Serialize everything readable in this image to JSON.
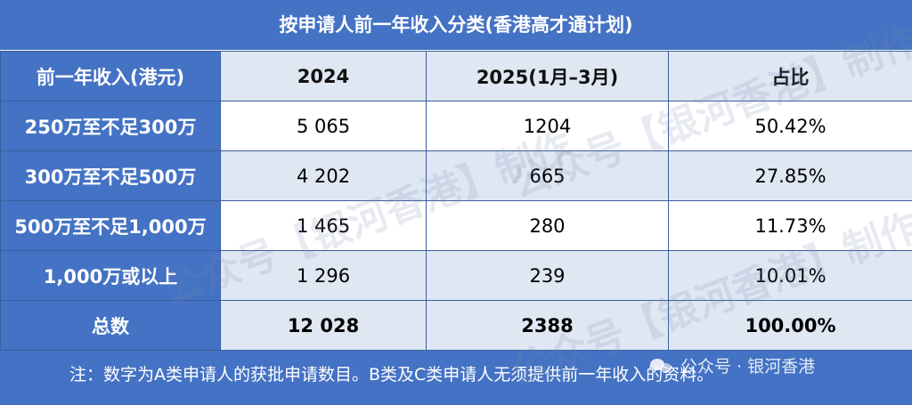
{
  "title": "按申请人前一年收入分类(香港高才通计划)",
  "table": {
    "headers": [
      "前一年收入(港元)",
      "2024",
      "2025(1月–3月)",
      "占比"
    ],
    "rows": [
      {
        "label": "250万至不足300万",
        "y2024": "5 065",
        "y2025": "1204",
        "share": "50.42%"
      },
      {
        "label": "300万至不足500万",
        "y2024": "4 202",
        "y2025": "665",
        "share": "27.85%"
      },
      {
        "label": "500万至不足1,000万",
        "y2024": "1 465",
        "y2025": "280",
        "share": "11.73%"
      },
      {
        "label": "1,000万或以上",
        "y2024": "1 296",
        "y2025": "239",
        "share": "10.01%"
      }
    ],
    "total": {
      "label": "总数",
      "y2024": "12 028",
      "y2025": "2388",
      "share": "100.00%"
    }
  },
  "note": "注：数字为A类申请人的获批申请数目。B类及C类申请人无须提供前一年收入的资料。",
  "watermark": {
    "corner_text": "公众号 · 银河香港",
    "diagonal_text": "公众号【银河香港】制作"
  }
}
